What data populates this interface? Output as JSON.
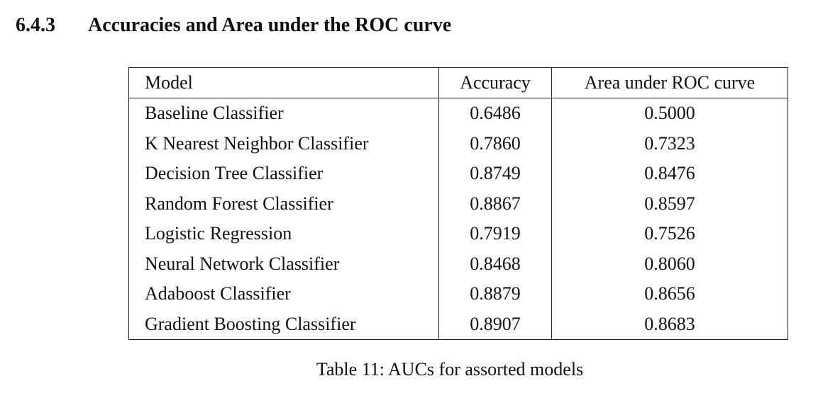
{
  "section": {
    "number": "6.4.3",
    "title": "Accuracies and Area under the ROC curve"
  },
  "table": {
    "headers": {
      "model": "Model",
      "accuracy": "Accuracy",
      "auc": "Area under ROC curve"
    },
    "rows": [
      {
        "model": "Baseline Classifier",
        "accuracy": "0.6486",
        "auc": "0.5000"
      },
      {
        "model": "K Nearest Neighbor Classifier",
        "accuracy": "0.7860",
        "auc": "0.7323"
      },
      {
        "model": "Decision Tree Classifier",
        "accuracy": "0.8749",
        "auc": "0.8476"
      },
      {
        "model": "Random Forest Classifier",
        "accuracy": "0.8867",
        "auc": "0.8597"
      },
      {
        "model": "Logistic Regression",
        "accuracy": "0.7919",
        "auc": "0.7526"
      },
      {
        "model": "Neural Network Classifier",
        "accuracy": "0.8468",
        "auc": "0.8060"
      },
      {
        "model": "Adaboost Classifier",
        "accuracy": "0.8879",
        "auc": "0.8656"
      },
      {
        "model": "Gradient Boosting Classifier",
        "accuracy": "0.8907",
        "auc": "0.8683"
      }
    ],
    "caption": "Table 11: AUCs for assorted models"
  }
}
